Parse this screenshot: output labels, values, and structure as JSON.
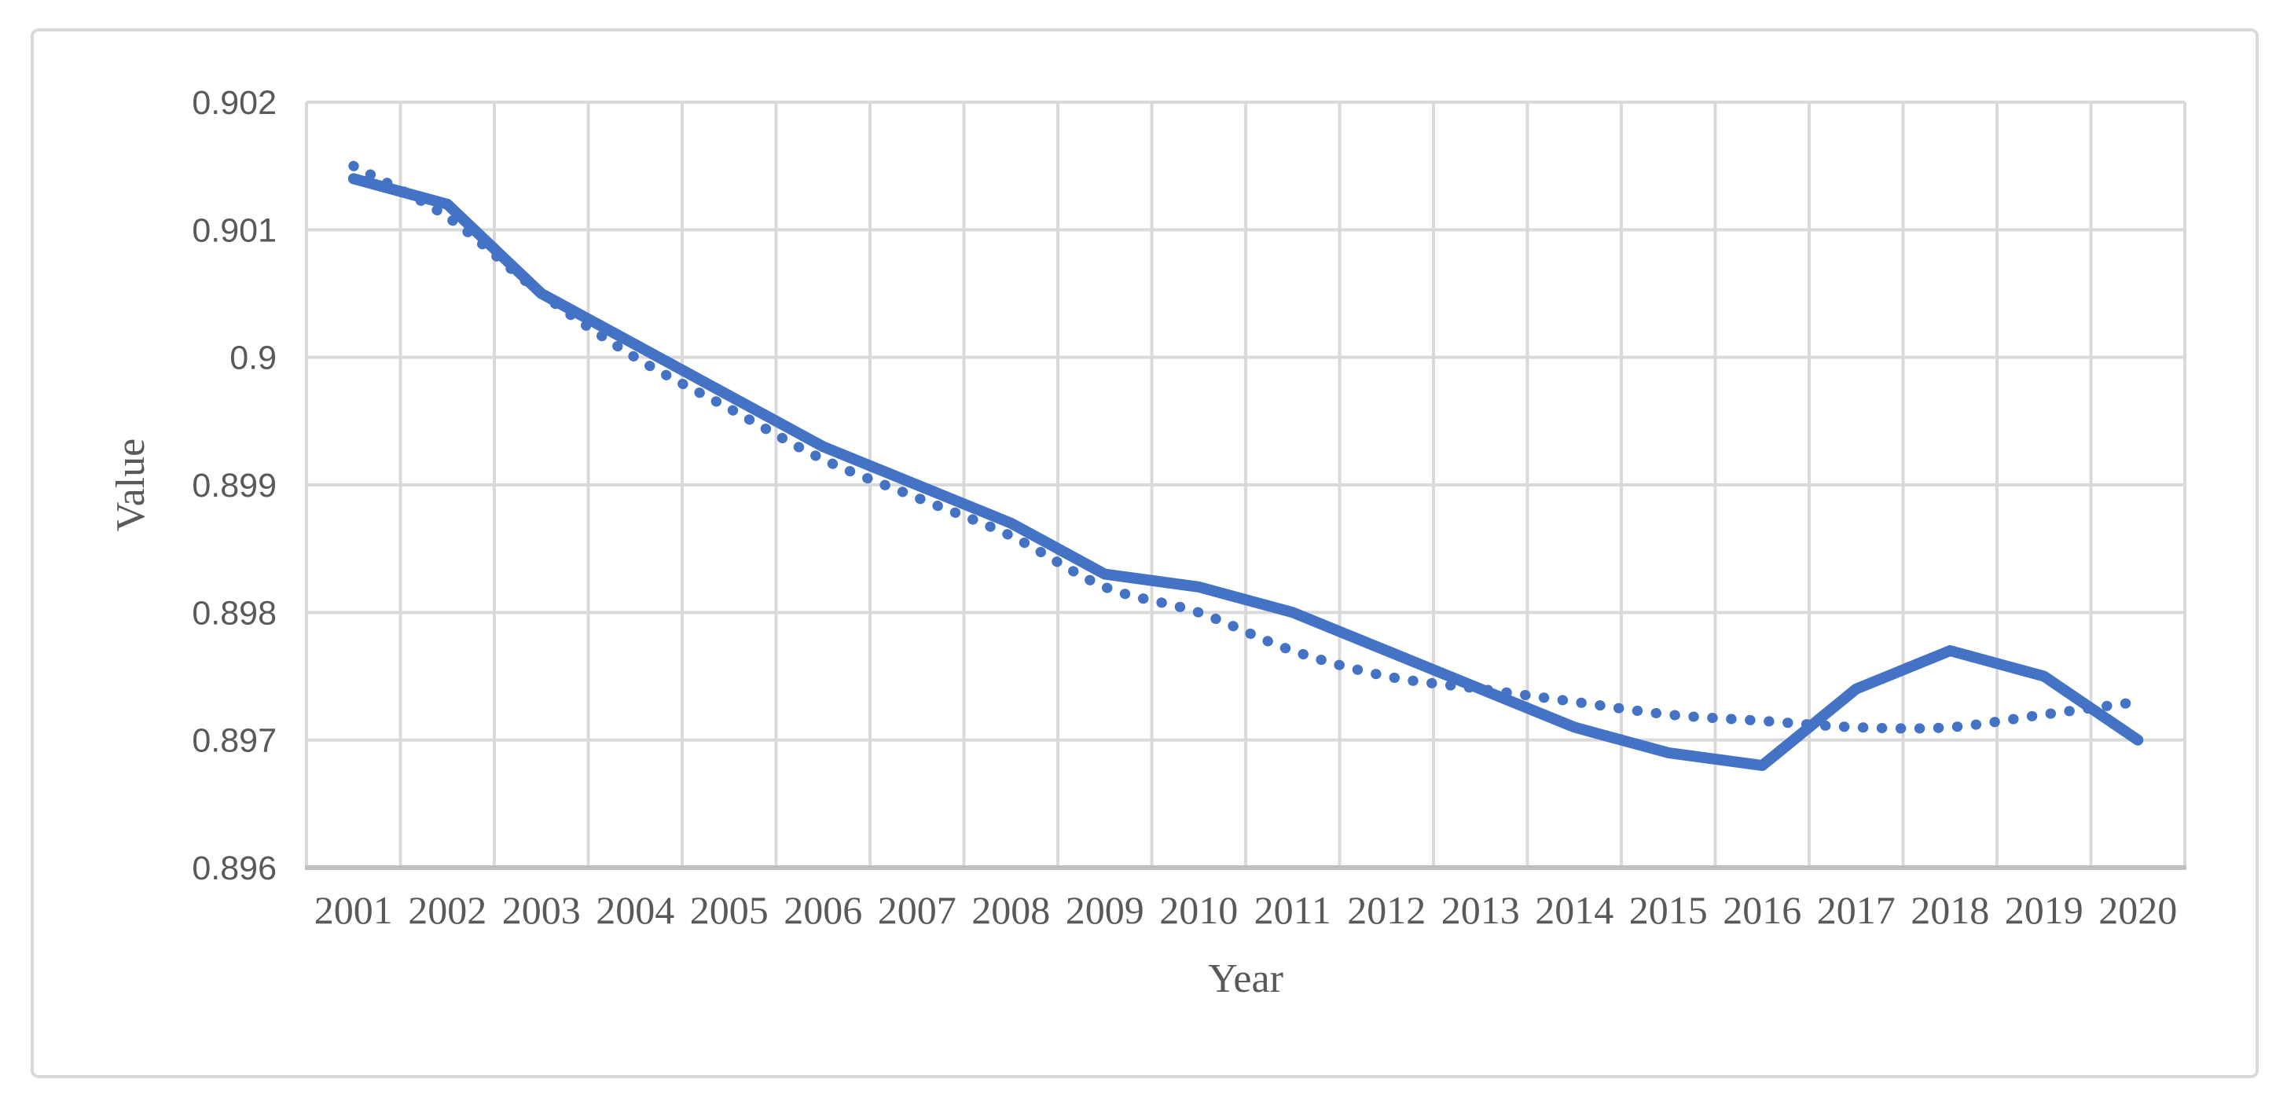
{
  "chart_data": {
    "type": "line",
    "title": "",
    "xlabel": "Year",
    "ylabel": "Value",
    "categories": [
      2001,
      2002,
      2003,
      2004,
      2005,
      2006,
      2007,
      2008,
      2009,
      2010,
      2011,
      2012,
      2013,
      2014,
      2015,
      2016,
      2017,
      2018,
      2019,
      2020
    ],
    "series": [
      {
        "name": "value-solid-line",
        "style": "solid",
        "values": [
          0.9014,
          0.9012,
          0.9005,
          0.9001,
          0.8997,
          0.8993,
          0.899,
          0.8987,
          0.8983,
          0.8982,
          0.898,
          0.8977,
          0.8974,
          0.8971,
          0.8969,
          0.8968,
          0.8974,
          0.8977,
          0.8975,
          0.897
        ]
      },
      {
        "name": "trendline-dotted",
        "style": "dotted",
        "values": [
          0.9015,
          0.9011,
          0.9005,
          0.9,
          0.8996,
          0.8992,
          0.8989,
          0.8986,
          0.8982,
          0.898,
          0.8977,
          0.8975,
          0.8974,
          0.8973,
          0.8972,
          0.89715,
          0.8971,
          0.8971,
          0.8972,
          0.8973
        ]
      }
    ],
    "ylim": [
      0.896,
      0.902
    ],
    "ytick_values": [
      0.902,
      0.901,
      0.9,
      0.899,
      0.898,
      0.897,
      0.896
    ],
    "ytick_labels": [
      "0.902",
      "0.901",
      "0.9",
      "0.899",
      "0.898",
      "0.897",
      "0.896"
    ],
    "xtick_labels": [
      "2001",
      "2002",
      "2003",
      "2004",
      "2005",
      "2006",
      "2007",
      "2008",
      "2009",
      "2010",
      "2011",
      "2012",
      "2013",
      "2014",
      "2015",
      "2016",
      "2017",
      "2018",
      "2019",
      "2020"
    ],
    "grid": true,
    "legend": "none",
    "colors": {
      "series": "#4472C4",
      "gridline": "#D9D9D9",
      "axis_line": "#BFBFBF",
      "tick_label": "#595959",
      "chart_border": "#D9D9D9",
      "background": "#FFFFFF"
    }
  }
}
